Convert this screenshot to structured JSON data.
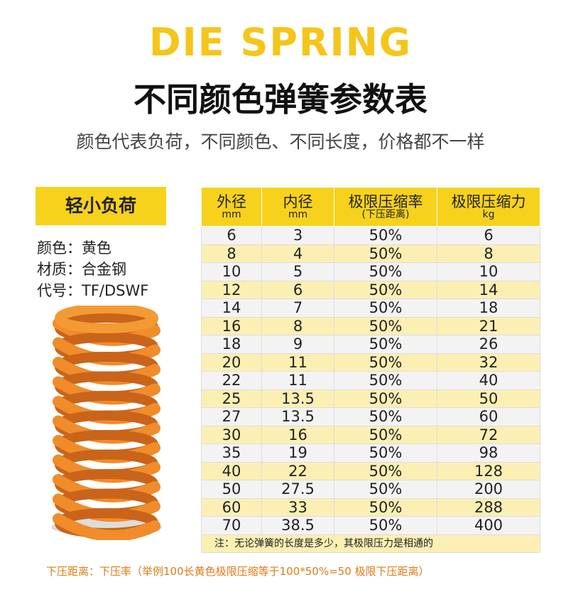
{
  "header": {
    "title": "DIE SPRING",
    "subtitle": "不同颜色弹簧参数表",
    "description": "颜色代表负荷，不同颜色、不同长度，价格都不一样"
  },
  "product": {
    "badge": "轻小负荷",
    "info": [
      "颜色：黄色",
      "材质：合金钢",
      "代号：TF/DSWF"
    ]
  },
  "table": {
    "headers": [
      {
        "main": "外径",
        "sub": "mm"
      },
      {
        "main": "内径",
        "sub": "mm"
      },
      {
        "main": "极限压缩率",
        "sub": "(下压距离)"
      },
      {
        "main": "极限压缩力",
        "sub": "kg"
      }
    ],
    "rows": [
      [
        "6",
        "3",
        "50%",
        "6"
      ],
      [
        "8",
        "4",
        "50%",
        "8"
      ],
      [
        "10",
        "5",
        "50%",
        "10"
      ],
      [
        "12",
        "6",
        "50%",
        "14"
      ],
      [
        "14",
        "7",
        "50%",
        "18"
      ],
      [
        "16",
        "8",
        "50%",
        "21"
      ],
      [
        "18",
        "9",
        "50%",
        "26"
      ],
      [
        "20",
        "11",
        "50%",
        "32"
      ],
      [
        "22",
        "11",
        "50%",
        "40"
      ],
      [
        "25",
        "13.5",
        "50%",
        "50"
      ],
      [
        "27",
        "13.5",
        "50%",
        "60"
      ],
      [
        "30",
        "16",
        "50%",
        "72"
      ],
      [
        "35",
        "19",
        "50%",
        "98"
      ],
      [
        "40",
        "22",
        "50%",
        "128"
      ],
      [
        "50",
        "27.5",
        "50%",
        "200"
      ],
      [
        "60",
        "33",
        "50%",
        "288"
      ],
      [
        "70",
        "38.5",
        "50%",
        "400"
      ]
    ],
    "note": "注：无论弹簧的长度是多少，其极限压力是相通的"
  },
  "footer": "下压距离：下压率（举例100长黄色极限压缩等于100*50%=50 极限下压距离）"
}
